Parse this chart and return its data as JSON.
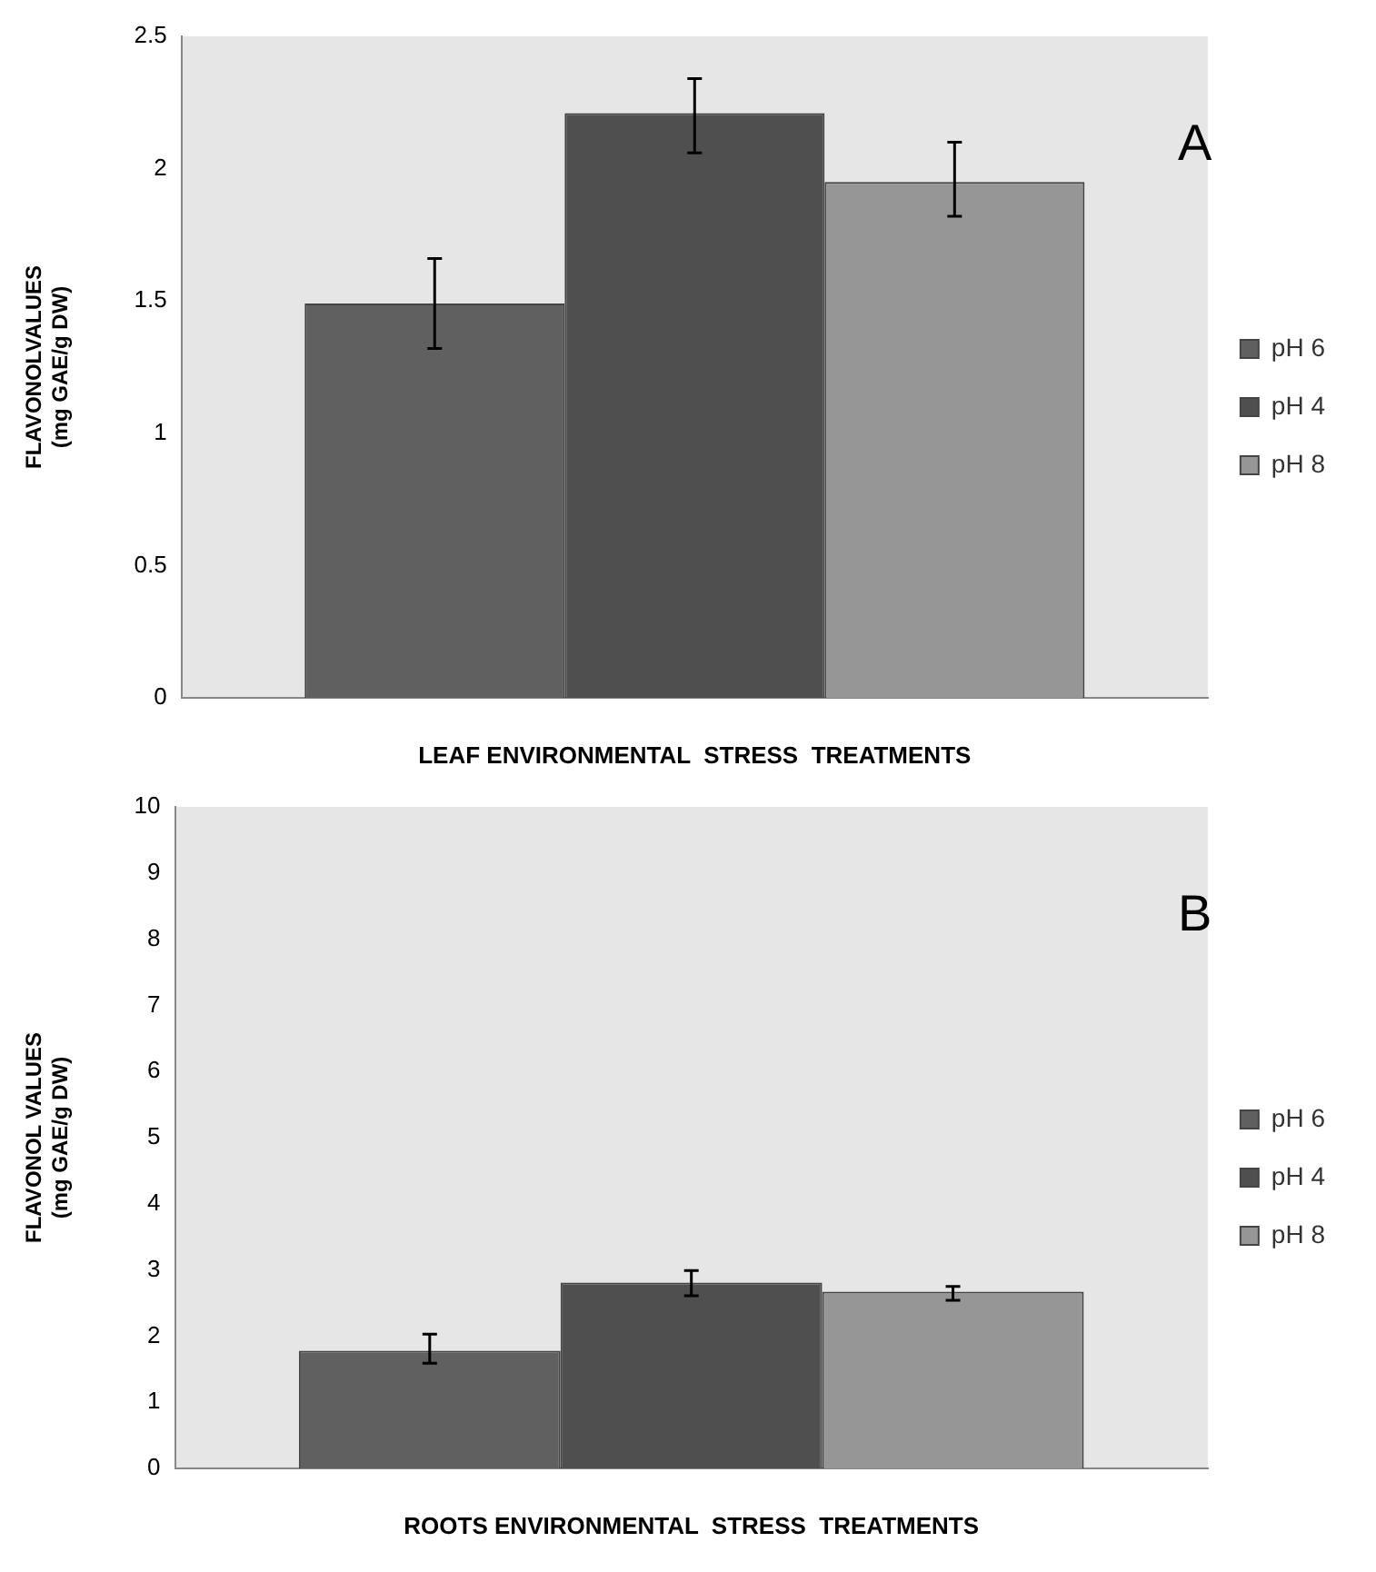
{
  "chart_data": [
    {
      "type": "bar",
      "categories": [
        null
      ],
      "xlabel": "LEAF ENVIRONMENTAL  STRESS  TREATMENTS",
      "ylabel": "FLAVONOLVALUES\n(mg GAE/g DW)",
      "annotations": [
        "A"
      ],
      "ylim": [
        0,
        2.5
      ],
      "yticks": [
        0,
        0.5,
        1,
        1.5,
        2,
        2.5
      ],
      "grid": false,
      "legend": "right",
      "series": [
        {
          "name": "pH 6",
          "color": "#606060",
          "values": [
            1.49
          ],
          "errors": [
            [
              1.32,
              1.66
            ]
          ]
        },
        {
          "name": "pH 4",
          "color": "#4f4f4f",
          "values": [
            2.21
          ],
          "errors": [
            [
              2.06,
              2.34
            ]
          ]
        },
        {
          "name": "pH 8",
          "color": "#969696",
          "values": [
            1.95
          ],
          "errors": [
            [
              1.82,
              2.1
            ]
          ]
        }
      ]
    },
    {
      "type": "bar",
      "categories": [
        null
      ],
      "xlabel": "ROOTS ENVIRONMENTAL  STRESS  TREATMENTS",
      "ylabel": "FLAVONOL VALUES\n(mg GAE/g DW)",
      "annotations": [
        "B"
      ],
      "ylim": [
        0,
        10
      ],
      "yticks": [
        0,
        1,
        2,
        3,
        4,
        5,
        6,
        7,
        8,
        9,
        10
      ],
      "grid": false,
      "legend": "right",
      "series": [
        {
          "name": "pH 6",
          "color": "#606060",
          "values": [
            1.78
          ],
          "errors": [
            [
              1.59,
              2.03
            ]
          ]
        },
        {
          "name": "pH 4",
          "color": "#4f4f4f",
          "values": [
            2.81
          ],
          "errors": [
            [
              2.61,
              2.99
            ]
          ]
        },
        {
          "name": "pH 8",
          "color": "#969696",
          "values": [
            2.67
          ],
          "errors": [
            [
              2.54,
              2.75
            ]
          ]
        }
      ]
    }
  ]
}
